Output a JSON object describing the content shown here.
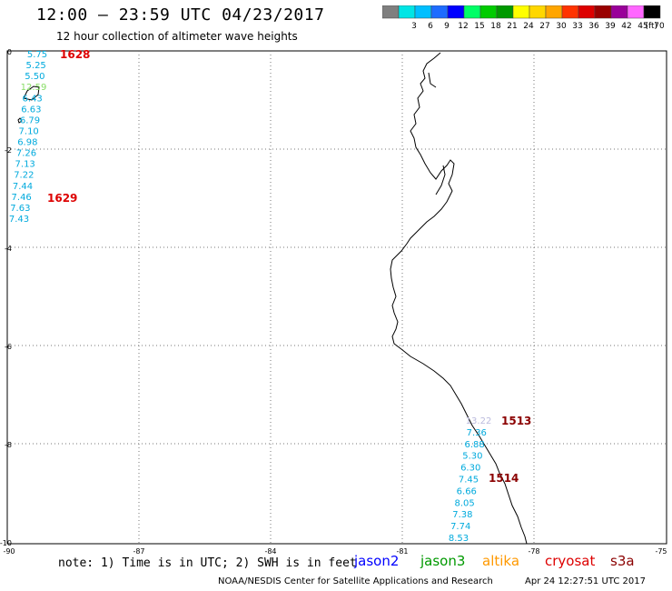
{
  "header": {
    "title": "12:00 — 23:59 UTC 04/23/2017",
    "subtitle": "12 hour collection of altimeter wave heights"
  },
  "legend": {
    "unit": "(ft)",
    "bins": [
      {
        "label": "",
        "color": "#7f7f7f"
      },
      {
        "label": "3",
        "color": "#00e5e5"
      },
      {
        "label": "6",
        "color": "#00bfff"
      },
      {
        "label": "9",
        "color": "#1e6cff"
      },
      {
        "label": "12",
        "color": "#0000ff"
      },
      {
        "label": "15",
        "color": "#00ff66"
      },
      {
        "label": "18",
        "color": "#00cc00"
      },
      {
        "label": "21",
        "color": "#009900"
      },
      {
        "label": "24",
        "color": "#ffff00"
      },
      {
        "label": "27",
        "color": "#ffd700"
      },
      {
        "label": "30",
        "color": "#ffa500"
      },
      {
        "label": "33",
        "color": "#ff3300"
      },
      {
        "label": "36",
        "color": "#dd0000"
      },
      {
        "label": "39",
        "color": "#990000"
      },
      {
        "label": "42",
        "color": "#990099"
      },
      {
        "label": "45",
        "color": "#ff66ff"
      },
      {
        "label": "70",
        "color": "#000000"
      }
    ]
  },
  "axes": {
    "y_ticks": [
      "0",
      "-2",
      "-4",
      "-6",
      "-8",
      "-10"
    ],
    "x_ticks": [
      "-90",
      "-87",
      "-84",
      "-81",
      "-78",
      "-75"
    ]
  },
  "tracks": [
    {
      "ids": [
        {
          "text": "1628",
          "color": "#dd0000"
        },
        {
          "text": "1629",
          "color": "#dd0000"
        }
      ],
      "readings": [
        {
          "text": "5.75",
          "color": "#00aadd"
        },
        {
          "text": "5.25",
          "color": "#00aadd"
        },
        {
          "text": "5.50",
          "color": "#00aadd"
        },
        {
          "text": "12.59",
          "color": "#88dd66"
        },
        {
          "text": "6.43",
          "color": "#00aadd"
        },
        {
          "text": "6.63",
          "color": "#00aadd"
        },
        {
          "text": "6.79",
          "color": "#00aadd"
        },
        {
          "text": "7.10",
          "color": "#00aadd"
        },
        {
          "text": "6.98",
          "color": "#00aadd"
        },
        {
          "text": "7.26",
          "color": "#00aadd"
        },
        {
          "text": "7.13",
          "color": "#00aadd"
        },
        {
          "text": "7.22",
          "color": "#00aadd"
        },
        {
          "text": "7.44",
          "color": "#00aadd"
        },
        {
          "text": "7.46",
          "color": "#00aadd"
        },
        {
          "text": "7.63",
          "color": "#00aadd"
        },
        {
          "text": "7.43",
          "color": "#00aadd"
        }
      ]
    },
    {
      "ids": [
        {
          "text": "1513",
          "color": "#8b0000"
        },
        {
          "text": "1514",
          "color": "#8b0000"
        }
      ],
      "readings": [
        {
          "text": "13.22",
          "color": "#bbbbdd"
        },
        {
          "text": "7.36",
          "color": "#00aadd"
        },
        {
          "text": "6.88",
          "color": "#00aadd"
        },
        {
          "text": "5.30",
          "color": "#00aadd"
        },
        {
          "text": "6.30",
          "color": "#00aadd"
        },
        {
          "text": "7.45",
          "color": "#00aadd"
        },
        {
          "text": "6.66",
          "color": "#00aadd"
        },
        {
          "text": "8.05",
          "color": "#00aadd"
        },
        {
          "text": "7.38",
          "color": "#00aadd"
        },
        {
          "text": "7.74",
          "color": "#00aadd"
        },
        {
          "text": "8.53",
          "color": "#00aadd"
        }
      ]
    }
  ],
  "footer": {
    "note": "note: 1) Time is in UTC; 2) SWH is in feet",
    "missions": [
      {
        "name": "jason2",
        "color": "#0000ff"
      },
      {
        "name": "jason3",
        "color": "#009900"
      },
      {
        "name": "altika",
        "color": "#ff9900"
      },
      {
        "name": "cryosat",
        "color": "#dd0000"
      },
      {
        "name": "s3a",
        "color": "#8b0000"
      }
    ],
    "credit": "NOAA/NESDIS Center for Satellite Applications and Research",
    "timestamp": "Apr 24 12:27:51 UTC 2017"
  }
}
